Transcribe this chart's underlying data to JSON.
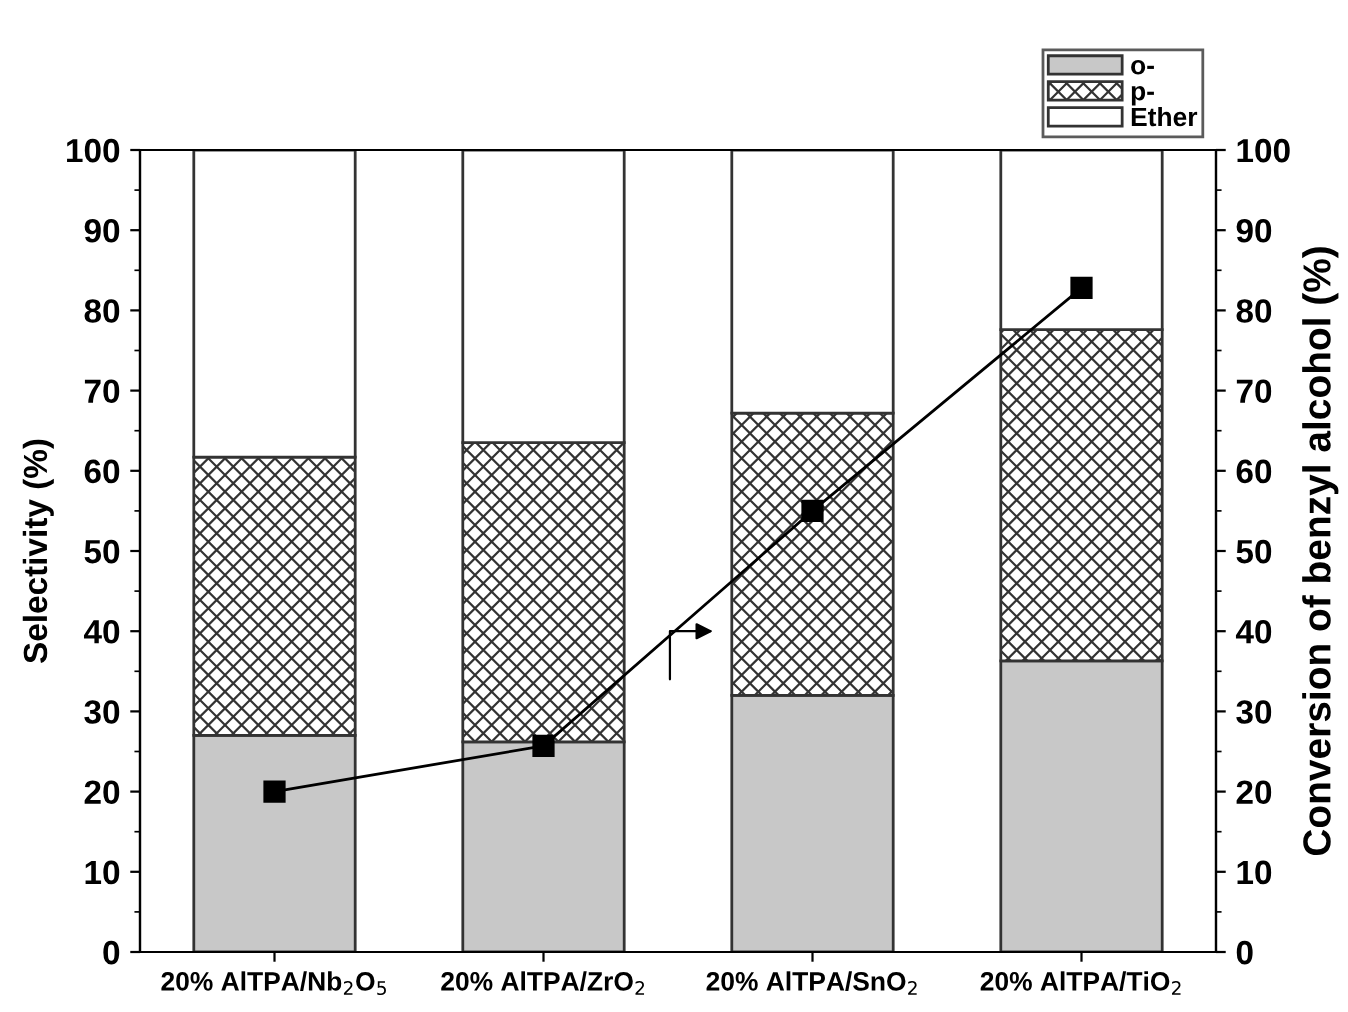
{
  "chart_data": {
    "type": "bar",
    "stacked": true,
    "ylabel": "Selectivity (%)",
    "y2label": "Conversion of benzyl alcohol (%)",
    "categories": [
      "20% AlTPA/Nb$_{2}$O$_{5}$",
      "20% AlTPA/ZrO$_{2}$",
      "20% AlTPA/SnO$_{2}$",
      "20% AlTPA/TiO$_{2}$"
    ],
    "series": [
      {
        "name": "o-",
        "color": "#c8c8c8",
        "values": [
          27,
          26.2,
          32,
          36.3
        ]
      },
      {
        "name": "p-",
        "color": "#333333",
        "values": [
          34.7,
          37.3,
          35.2,
          41.3
        ]
      },
      {
        "name": "Ether",
        "color": "#ffffff",
        "values": [
          38.3,
          36.5,
          32.8,
          22.4
        ]
      },
      {
        "type": "line",
        "axis": "y2",
        "color": "#000000",
        "marker": "square",
        "values": [
          20,
          25.7,
          55,
          82.8
        ]
      }
    ],
    "ylim": [
      0,
      100
    ],
    "yticks": [
      0,
      10,
      20,
      30,
      40,
      50,
      60,
      70,
      80,
      90,
      100
    ],
    "y2lim": [
      0,
      100
    ],
    "y2ticks": [
      0,
      10,
      20,
      30,
      40,
      50,
      60,
      70,
      80,
      90,
      100
    ],
    "grid": false,
    "legend": "top right"
  }
}
